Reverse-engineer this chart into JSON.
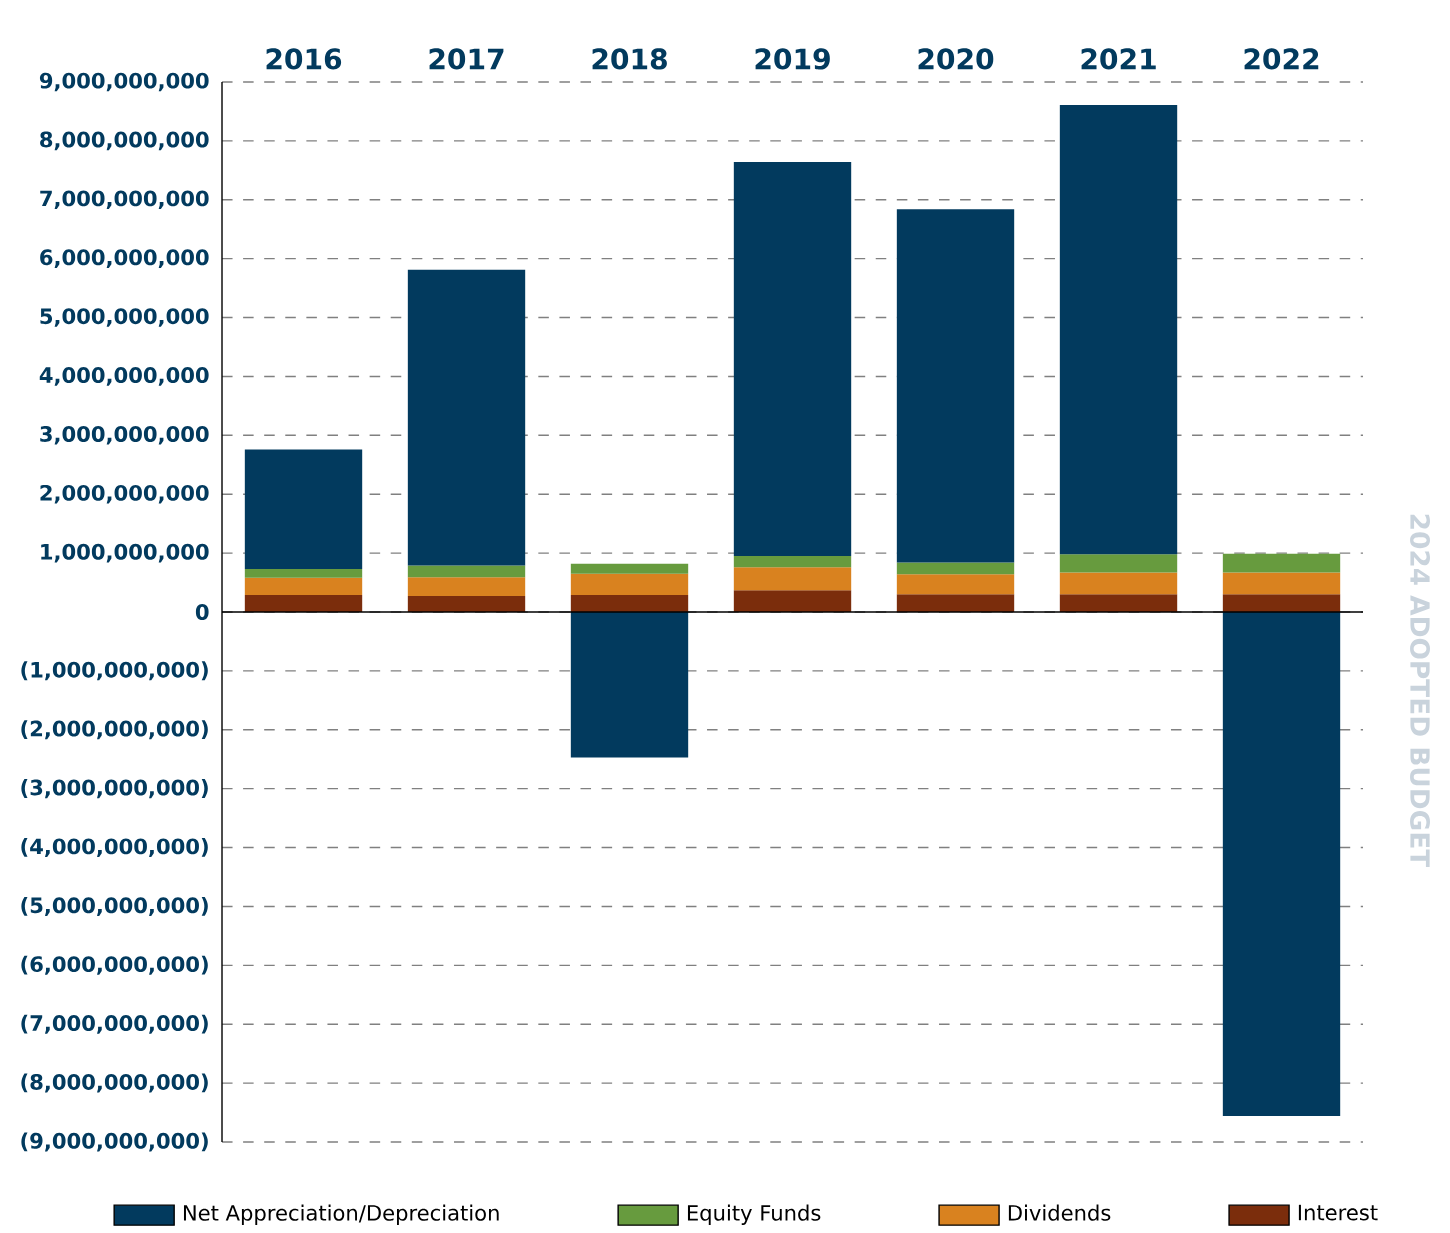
{
  "chart_data": {
    "type": "bar",
    "stacked": true,
    "categories": [
      "2016",
      "2017",
      "2018",
      "2019",
      "2020",
      "2021",
      "2022"
    ],
    "series": [
      {
        "name": "Interest",
        "color": "#7b2d0c",
        "values": [
          290000000,
          270000000,
          290000000,
          370000000,
          300000000,
          300000000,
          300000000
        ]
      },
      {
        "name": "Dividends",
        "color": "#d9821f",
        "values": [
          290000000,
          320000000,
          360000000,
          390000000,
          340000000,
          370000000,
          370000000
        ]
      },
      {
        "name": "Equity Funds",
        "color": "#679b3e",
        "values": [
          150000000,
          200000000,
          170000000,
          190000000,
          200000000,
          310000000,
          320000000
        ]
      },
      {
        "name": "Net Appreciation/Depreciation",
        "color": "#023a5e",
        "values": [
          2030000000,
          5020000000,
          -2470000000,
          6690000000,
          6000000000,
          7630000000,
          -8560000000
        ]
      }
    ],
    "ylim": [
      -9000000000,
      9000000000
    ],
    "yticks": [
      {
        "value": -9000000000,
        "label": "(9,000,000,000)"
      },
      {
        "value": -8000000000,
        "label": "(8,000,000,000)"
      },
      {
        "value": -7000000000,
        "label": "(7,000,000,000)"
      },
      {
        "value": -6000000000,
        "label": "(6,000,000,000)"
      },
      {
        "value": -5000000000,
        "label": "(5,000,000,000)"
      },
      {
        "value": -4000000000,
        "label": "(4,000,000,000)"
      },
      {
        "value": -3000000000,
        "label": "(3,000,000,000)"
      },
      {
        "value": -2000000000,
        "label": "(2,000,000,000)"
      },
      {
        "value": -1000000000,
        "label": "(1,000,000,000)"
      },
      0,
      {
        "value": 1000000000,
        "label": "1,000,000,000"
      },
      {
        "value": 2000000000,
        "label": "2,000,000,000"
      },
      {
        "value": 3000000000,
        "label": "3,000,000,000"
      },
      {
        "value": 4000000000,
        "label": "4,000,000,000"
      },
      {
        "value": 5000000000,
        "label": "5,000,000,000"
      },
      {
        "value": 6000000000,
        "label": "6,000,000,000"
      },
      {
        "value": 7000000000,
        "label": "7,000,000,000"
      },
      {
        "value": 8000000000,
        "label": "8,000,000,000"
      },
      {
        "value": 9000000000,
        "label": "9,000,000,000"
      }
    ],
    "grid": "y",
    "legend": "bottom",
    "annotations": [
      "2024 ADOPTED BUDGET"
    ]
  }
}
